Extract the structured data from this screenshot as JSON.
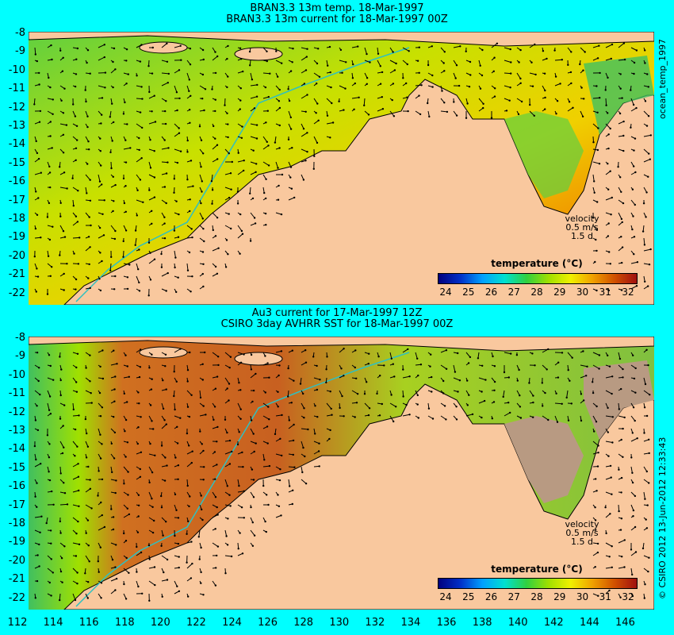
{
  "top_panel": {
    "title_line1": "BRAN3.3 13m temp. 18-Mar-1997",
    "title_line2": "BRAN3.3 13m current for 18-Mar-1997 00Z",
    "side_label": "ocean_temp_1997",
    "velocity_label": "velocity",
    "velocity_scale": "0.5 m/s",
    "velocity_time": "1.5 d"
  },
  "bottom_panel": {
    "title_line1": "Au3 current for 17-Mar-1997 12Z",
    "title_line2": "CSIRO 3day AVHRR SST for 18-Mar-1997 00Z",
    "side_label": "© CSIRO 2012  13-Jun-2012 12:33:43",
    "velocity_label": "velocity",
    "velocity_scale": "0.5 m/s",
    "velocity_time": "1.5 d"
  },
  "colorbar": {
    "title": "temperature (°C)",
    "ticks": [
      "24",
      "25",
      "26",
      "27",
      "28",
      "29",
      "30",
      "31",
      "32"
    ],
    "colors": [
      "#00007f",
      "#0030c8",
      "#00a0ff",
      "#00e0d0",
      "#30d040",
      "#a0e000",
      "#f0f000",
      "#f0a000",
      "#d05000",
      "#a01010"
    ]
  },
  "axes": {
    "latitude_labels": [
      "-8",
      "-9",
      "-10",
      "-11",
      "-12",
      "-13",
      "-14",
      "-15",
      "-16",
      "-17",
      "-18",
      "-19",
      "-20",
      "-21",
      "-22"
    ],
    "longitude_labels": [
      "112",
      "114",
      "116",
      "118",
      "120",
      "122",
      "124",
      "126",
      "128",
      "130",
      "132",
      "134",
      "136",
      "138",
      "140",
      "142",
      "144",
      "146"
    ]
  },
  "colors": {
    "background": "#00ffff",
    "land": "#f9c89e",
    "no_data": "#b89a82",
    "bathymetry_line": "#30c0c0"
  }
}
